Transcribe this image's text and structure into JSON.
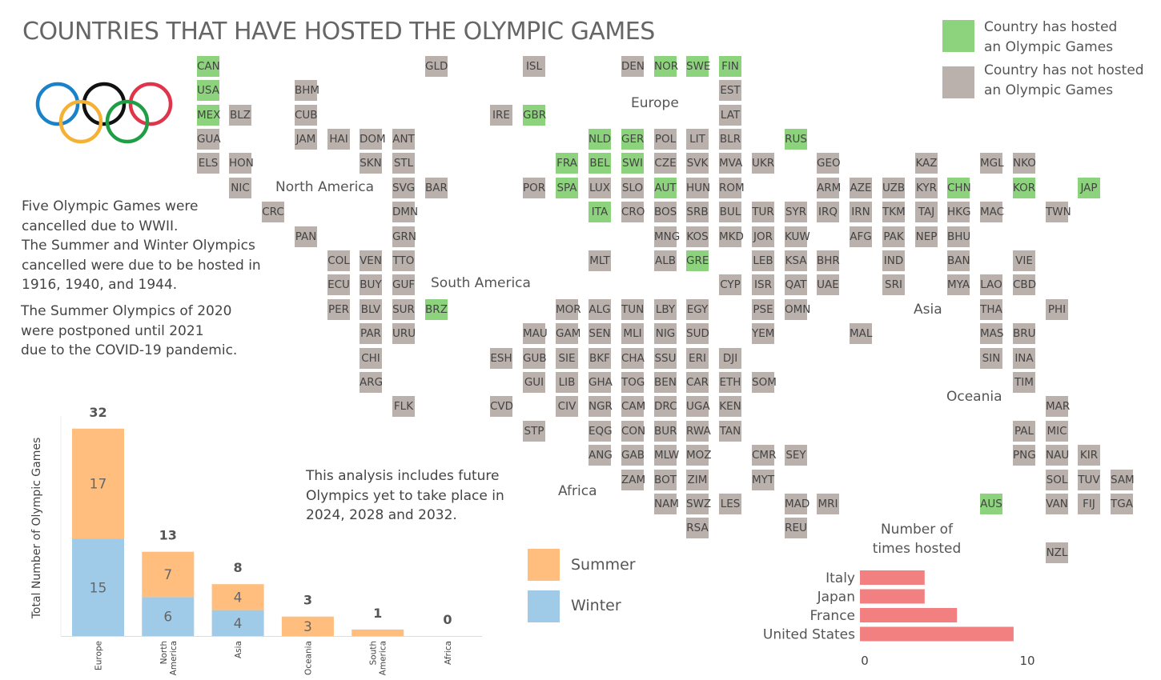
{
  "title": "COUNTRIES THAT HAVE HOSTED THE OLYMPIC GAMES",
  "colors": {
    "hosted": "#8dd37d",
    "not_hosted": "#bab0ac",
    "summer": "#ffbe7d",
    "winter": "#a0cbe8",
    "times": "#f28080"
  },
  "legend": {
    "hosted": "Country has hosted\nan Olympic Games",
    "not_hosted": "Country has not hosted\nan Olympic Games"
  },
  "notes": {
    "wwii": "Five Olympic Games were\ncancelled due to WWII.\nThe Summer and Winter Olympics\ncancelled were due to be hosted in\n1916, 1940, and 1944.",
    "covid": "The Summer Olympics of 2020\nwere postponed until 2021\ndue to the COVID-19 pandemic.",
    "future": "This analysis includes future\nOlympics yet to take place in\n2024, 2028 and 2032."
  },
  "regions": [
    "North America",
    "Europe",
    "South America",
    "Asia",
    "Africa",
    "Oceania"
  ],
  "tiles": [
    {
      "code": "CAN",
      "hosted": true
    },
    {
      "code": "USA",
      "hosted": true
    },
    {
      "code": "MEX",
      "hosted": true
    },
    {
      "code": "GUA",
      "hosted": false
    },
    {
      "code": "ELS",
      "hosted": false
    },
    {
      "code": "BLZ",
      "hosted": false
    },
    {
      "code": "HON",
      "hosted": false
    },
    {
      "code": "NIC",
      "hosted": false
    },
    {
      "code": "CRC",
      "hosted": false
    },
    {
      "code": "PAN",
      "hosted": false
    },
    {
      "code": "BHM",
      "hosted": false
    },
    {
      "code": "CUB",
      "hosted": false
    },
    {
      "code": "JAM",
      "hosted": false
    },
    {
      "code": "HAI",
      "hosted": false
    },
    {
      "code": "DOM",
      "hosted": false
    },
    {
      "code": "SKN",
      "hosted": false
    },
    {
      "code": "ANT",
      "hosted": false
    },
    {
      "code": "STL",
      "hosted": false
    },
    {
      "code": "SVG",
      "hosted": false
    },
    {
      "code": "BAR",
      "hosted": false
    },
    {
      "code": "DMN",
      "hosted": false
    },
    {
      "code": "GRN",
      "hosted": false
    },
    {
      "code": "TTO",
      "hosted": false
    },
    {
      "code": "GLD",
      "hosted": false
    },
    {
      "code": "COL",
      "hosted": false
    },
    {
      "code": "VEN",
      "hosted": false
    },
    {
      "code": "ECU",
      "hosted": false
    },
    {
      "code": "BUY",
      "hosted": false
    },
    {
      "code": "GUF",
      "hosted": false
    },
    {
      "code": "PER",
      "hosted": false
    },
    {
      "code": "BLV",
      "hosted": false
    },
    {
      "code": "SUR",
      "hosted": false
    },
    {
      "code": "BRZ",
      "hosted": true
    },
    {
      "code": "PAR",
      "hosted": false
    },
    {
      "code": "URU",
      "hosted": false
    },
    {
      "code": "CHI",
      "hosted": false
    },
    {
      "code": "ARG",
      "hosted": false
    },
    {
      "code": "FLK",
      "hosted": false
    },
    {
      "code": "ISL",
      "hosted": false
    },
    {
      "code": "IRE",
      "hosted": false
    },
    {
      "code": "GBR",
      "hosted": true
    },
    {
      "code": "DEN",
      "hosted": false
    },
    {
      "code": "NOR",
      "hosted": true
    },
    {
      "code": "SWE",
      "hosted": true
    },
    {
      "code": "FIN",
      "hosted": true
    },
    {
      "code": "EST",
      "hosted": false
    },
    {
      "code": "LAT",
      "hosted": false
    },
    {
      "code": "NLD",
      "hosted": true
    },
    {
      "code": "GER",
      "hosted": true
    },
    {
      "code": "POL",
      "hosted": false
    },
    {
      "code": "LIT",
      "hosted": false
    },
    {
      "code": "BLR",
      "hosted": false
    },
    {
      "code": "RUS",
      "hosted": true
    },
    {
      "code": "FRA",
      "hosted": true
    },
    {
      "code": "BEL",
      "hosted": true
    },
    {
      "code": "SWI",
      "hosted": true
    },
    {
      "code": "CZE",
      "hosted": false
    },
    {
      "code": "SVK",
      "hosted": false
    },
    {
      "code": "MVA",
      "hosted": false
    },
    {
      "code": "UKR",
      "hosted": false
    },
    {
      "code": "POR",
      "hosted": false
    },
    {
      "code": "SPA",
      "hosted": true
    },
    {
      "code": "LUX",
      "hosted": false
    },
    {
      "code": "SLO",
      "hosted": false
    },
    {
      "code": "AUT",
      "hosted": true
    },
    {
      "code": "HUN",
      "hosted": false
    },
    {
      "code": "ROM",
      "hosted": false
    },
    {
      "code": "ITA",
      "hosted": true
    },
    {
      "code": "CRO",
      "hosted": false
    },
    {
      "code": "BOS",
      "hosted": false
    },
    {
      "code": "SRB",
      "hosted": false
    },
    {
      "code": "BUL",
      "hosted": false
    },
    {
      "code": "MNG",
      "hosted": false
    },
    {
      "code": "KOS",
      "hosted": false
    },
    {
      "code": "MKD",
      "hosted": false
    },
    {
      "code": "MLT",
      "hosted": false
    },
    {
      "code": "ALB",
      "hosted": false
    },
    {
      "code": "GRE",
      "hosted": true
    },
    {
      "code": "CYP",
      "hosted": false
    },
    {
      "code": "GEO",
      "hosted": false
    },
    {
      "code": "KAZ",
      "hosted": false
    },
    {
      "code": "MGL",
      "hosted": false
    },
    {
      "code": "NKO",
      "hosted": false
    },
    {
      "code": "ARM",
      "hosted": false
    },
    {
      "code": "AZE",
      "hosted": false
    },
    {
      "code": "UZB",
      "hosted": false
    },
    {
      "code": "KYR",
      "hosted": false
    },
    {
      "code": "CHN",
      "hosted": true
    },
    {
      "code": "KOR",
      "hosted": true
    },
    {
      "code": "JAP",
      "hosted": true
    },
    {
      "code": "TUR",
      "hosted": false
    },
    {
      "code": "SYR",
      "hosted": false
    },
    {
      "code": "IRQ",
      "hosted": false
    },
    {
      "code": "IRN",
      "hosted": false
    },
    {
      "code": "TKM",
      "hosted": false
    },
    {
      "code": "TAJ",
      "hosted": false
    },
    {
      "code": "HKG",
      "hosted": false
    },
    {
      "code": "MAC",
      "hosted": false
    },
    {
      "code": "TWN",
      "hosted": false
    },
    {
      "code": "JOR",
      "hosted": false
    },
    {
      "code": "KUW",
      "hosted": false
    },
    {
      "code": "AFG",
      "hosted": false
    },
    {
      "code": "PAK",
      "hosted": false
    },
    {
      "code": "NEP",
      "hosted": false
    },
    {
      "code": "BHU",
      "hosted": false
    },
    {
      "code": "LEB",
      "hosted": false
    },
    {
      "code": "KSA",
      "hosted": false
    },
    {
      "code": "BHR",
      "hosted": false
    },
    {
      "code": "IND",
      "hosted": false
    },
    {
      "code": "BAN",
      "hosted": false
    },
    {
      "code": "VIE",
      "hosted": false
    },
    {
      "code": "ISR",
      "hosted": false
    },
    {
      "code": "QAT",
      "hosted": false
    },
    {
      "code": "UAE",
      "hosted": false
    },
    {
      "code": "SRI",
      "hosted": false
    },
    {
      "code": "MYA",
      "hosted": false
    },
    {
      "code": "LAO",
      "hosted": false
    },
    {
      "code": "CBD",
      "hosted": false
    },
    {
      "code": "PSE",
      "hosted": false
    },
    {
      "code": "OMN",
      "hosted": false
    },
    {
      "code": "THA",
      "hosted": false
    },
    {
      "code": "PHI",
      "hosted": false
    },
    {
      "code": "YEM",
      "hosted": false
    },
    {
      "code": "MAL",
      "hosted": false
    },
    {
      "code": "MAS",
      "hosted": false
    },
    {
      "code": "BRU",
      "hosted": false
    },
    {
      "code": "SIN",
      "hosted": false
    },
    {
      "code": "INA",
      "hosted": false
    },
    {
      "code": "TIM",
      "hosted": false
    },
    {
      "code": "MOR",
      "hosted": false
    },
    {
      "code": "ALG",
      "hosted": false
    },
    {
      "code": "TUN",
      "hosted": false
    },
    {
      "code": "LBY",
      "hosted": false
    },
    {
      "code": "EGY",
      "hosted": false
    },
    {
      "code": "MAU",
      "hosted": false
    },
    {
      "code": "GAM",
      "hosted": false
    },
    {
      "code": "SEN",
      "hosted": false
    },
    {
      "code": "MLI",
      "hosted": false
    },
    {
      "code": "NIG",
      "hosted": false
    },
    {
      "code": "SUD",
      "hosted": false
    },
    {
      "code": "ESH",
      "hosted": false
    },
    {
      "code": "GUB",
      "hosted": false
    },
    {
      "code": "SIE",
      "hosted": false
    },
    {
      "code": "BKF",
      "hosted": false
    },
    {
      "code": "CHA",
      "hosted": false
    },
    {
      "code": "SSU",
      "hosted": false
    },
    {
      "code": "ERI",
      "hosted": false
    },
    {
      "code": "DJI",
      "hosted": false
    },
    {
      "code": "GUI",
      "hosted": false
    },
    {
      "code": "LIB",
      "hosted": false
    },
    {
      "code": "GHA",
      "hosted": false
    },
    {
      "code": "TOG",
      "hosted": false
    },
    {
      "code": "BEN",
      "hosted": false
    },
    {
      "code": "CAR",
      "hosted": false
    },
    {
      "code": "ETH",
      "hosted": false
    },
    {
      "code": "SOM",
      "hosted": false
    },
    {
      "code": "CVD",
      "hosted": false
    },
    {
      "code": "CIV",
      "hosted": false
    },
    {
      "code": "NGR",
      "hosted": false
    },
    {
      "code": "CAM",
      "hosted": false
    },
    {
      "code": "DRC",
      "hosted": false
    },
    {
      "code": "UGA",
      "hosted": false
    },
    {
      "code": "KEN",
      "hosted": false
    },
    {
      "code": "STP",
      "hosted": false
    },
    {
      "code": "EQG",
      "hosted": false
    },
    {
      "code": "CON",
      "hosted": false
    },
    {
      "code": "BUR",
      "hosted": false
    },
    {
      "code": "RWA",
      "hosted": false
    },
    {
      "code": "TAN",
      "hosted": false
    },
    {
      "code": "ANG",
      "hosted": false
    },
    {
      "code": "GAB",
      "hosted": false
    },
    {
      "code": "MLW",
      "hosted": false
    },
    {
      "code": "MOZ",
      "hosted": false
    },
    {
      "code": "CMR",
      "hosted": false
    },
    {
      "code": "SEY",
      "hosted": false
    },
    {
      "code": "ZAM",
      "hosted": false
    },
    {
      "code": "BOT",
      "hosted": false
    },
    {
      "code": "ZIM",
      "hosted": false
    },
    {
      "code": "MYT",
      "hosted": false
    },
    {
      "code": "NAM",
      "hosted": false
    },
    {
      "code": "SWZ",
      "hosted": false
    },
    {
      "code": "LES",
      "hosted": false
    },
    {
      "code": "MAD",
      "hosted": false
    },
    {
      "code": "MRI",
      "hosted": false
    },
    {
      "code": "RSA",
      "hosted": false
    },
    {
      "code": "REU",
      "hosted": false
    },
    {
      "code": "MAR",
      "hosted": false
    },
    {
      "code": "PAL",
      "hosted": false
    },
    {
      "code": "MIC",
      "hosted": false
    },
    {
      "code": "PNG",
      "hosted": false
    },
    {
      "code": "NAU",
      "hosted": false
    },
    {
      "code": "KIR",
      "hosted": false
    },
    {
      "code": "SOL",
      "hosted": false
    },
    {
      "code": "TUV",
      "hosted": false
    },
    {
      "code": "SAM",
      "hosted": false
    },
    {
      "code": "AUS",
      "hosted": true
    },
    {
      "code": "VAN",
      "hosted": false
    },
    {
      "code": "FIJ",
      "hosted": false
    },
    {
      "code": "TGA",
      "hosted": false
    },
    {
      "code": "NZL",
      "hosted": false
    }
  ],
  "chart_data": [
    {
      "type": "bar",
      "stacked": true,
      "ylabel": "Total Number of Olympic Games",
      "categories": [
        "Europe",
        "North America",
        "Asia",
        "Oceania",
        "South America",
        "Africa"
      ],
      "totals": [
        32,
        13,
        8,
        3,
        1,
        0
      ],
      "series": [
        {
          "name": "Winter",
          "color": "#a0cbe8",
          "values": [
            15,
            6,
            4,
            0,
            0,
            0
          ]
        },
        {
          "name": "Summer",
          "color": "#ffbe7d",
          "values": [
            17,
            7,
            4,
            3,
            1,
            0
          ]
        }
      ],
      "legend": [
        "Summer",
        "Winter"
      ]
    },
    {
      "type": "bar",
      "orientation": "horizontal",
      "title": "Number of\ntimes hosted",
      "categories": [
        "Italy",
        "Japan",
        "France",
        "United States"
      ],
      "values": [
        4,
        4,
        6,
        9.5
      ],
      "xticks": [
        "0",
        "10"
      ],
      "xlim": [
        0,
        10
      ]
    }
  ]
}
